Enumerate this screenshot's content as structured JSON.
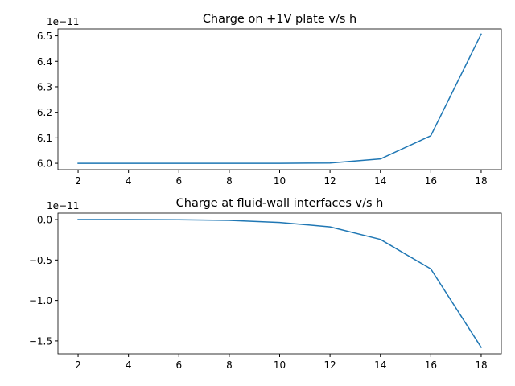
{
  "chart_data": [
    {
      "type": "line",
      "title": "Charge on +1V plate v/s h",
      "xlabel": "",
      "ylabel": "",
      "offset_label": "1e−11",
      "x": [
        2,
        4,
        6,
        8,
        10,
        12,
        14,
        16,
        18
      ],
      "series": [
        {
          "color": "#1f77b4",
          "values": [
            6.0,
            6.0,
            6.0,
            6.0,
            6.0,
            6.001,
            6.017,
            6.108,
            6.507
          ]
        }
      ],
      "xlim": [
        1.2,
        18.8
      ],
      "ylim": [
        5.975,
        6.527
      ],
      "xticks": [
        2,
        4,
        6,
        8,
        10,
        12,
        14,
        16,
        18
      ],
      "xtick_labels": [
        "2",
        "4",
        "6",
        "8",
        "10",
        "12",
        "14",
        "16",
        "18"
      ],
      "yticks": [
        6.0,
        6.1,
        6.2,
        6.3,
        6.4,
        6.5
      ],
      "ytick_labels": [
        "6.0",
        "6.1",
        "6.2",
        "6.3",
        "6.4",
        "6.5"
      ],
      "grid": false
    },
    {
      "type": "line",
      "title": "Charge at fluid-wall interfaces v/s h",
      "xlabel": "",
      "ylabel": "",
      "offset_label": "1e−11",
      "x": [
        2,
        4,
        6,
        8,
        10,
        12,
        14,
        16,
        18
      ],
      "series": [
        {
          "color": "#1f77b4",
          "values": [
            0.0,
            0.0,
            -0.002,
            -0.01,
            -0.035,
            -0.09,
            -0.245,
            -0.61,
            -1.58
          ]
        }
      ],
      "xlim": [
        1.2,
        18.8
      ],
      "ylim": [
        -1.66,
        0.08
      ],
      "xticks": [
        2,
        4,
        6,
        8,
        10,
        12,
        14,
        16,
        18
      ],
      "xtick_labels": [
        "2",
        "4",
        "6",
        "8",
        "10",
        "12",
        "14",
        "16",
        "18"
      ],
      "yticks": [
        0.0,
        -0.5,
        -1.0,
        -1.5
      ],
      "ytick_labels": [
        "0.0",
        "−0.5",
        "−1.0",
        "−1.5"
      ],
      "grid": false
    }
  ]
}
